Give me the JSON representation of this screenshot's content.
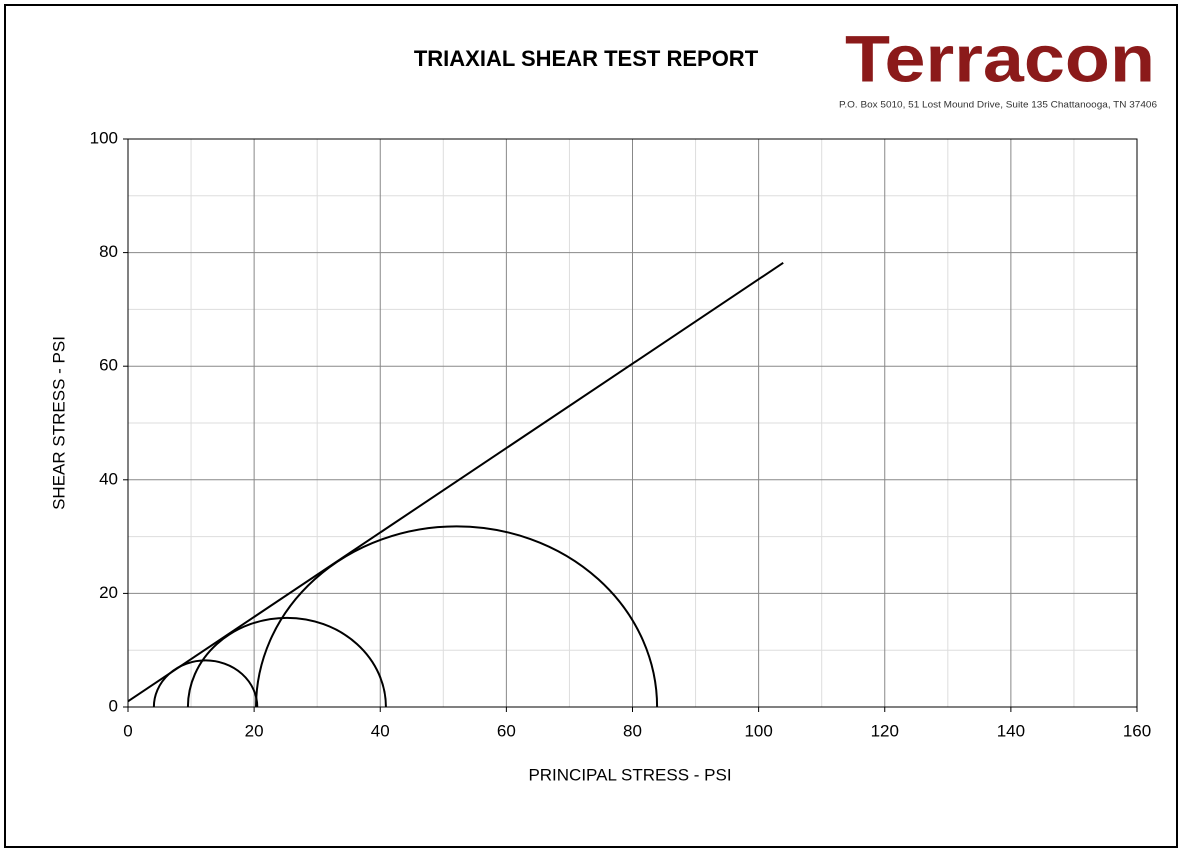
{
  "header": {
    "title": "TRIAXIAL SHEAR TEST REPORT",
    "logo": "Terracon",
    "address": "P.O. Box 5010,  51 Lost Mound Drive, Suite 135  Chattanooga, TN 37406"
  },
  "chart_data": {
    "type": "mohr",
    "xlabel": "PRINCIPAL STRESS - PSI",
    "ylabel": "SHEAR STRESS - PSI",
    "xlim": [
      0,
      160
    ],
    "ylim": [
      0,
      100
    ],
    "xticks": [
      0,
      20,
      40,
      60,
      80,
      100,
      120,
      140,
      160
    ],
    "yticks": [
      0,
      20,
      40,
      60,
      80,
      100
    ],
    "minor_xticks": [
      10,
      30,
      50,
      70,
      90,
      110,
      130,
      150
    ],
    "minor_yticks": [
      10,
      30,
      50,
      70,
      90
    ],
    "grid": true,
    "color": "#000000",
    "circles": [
      {
        "sigma3": 4.1,
        "sigma1": 20.5
      },
      {
        "sigma3": 9.5,
        "sigma1": 40.9
      },
      {
        "sigma3": 20.3,
        "sigma1": 83.9
      }
    ],
    "envelope": {
      "x": [
        0,
        103.9
      ],
      "y": [
        1.0,
        78.2
      ]
    }
  }
}
